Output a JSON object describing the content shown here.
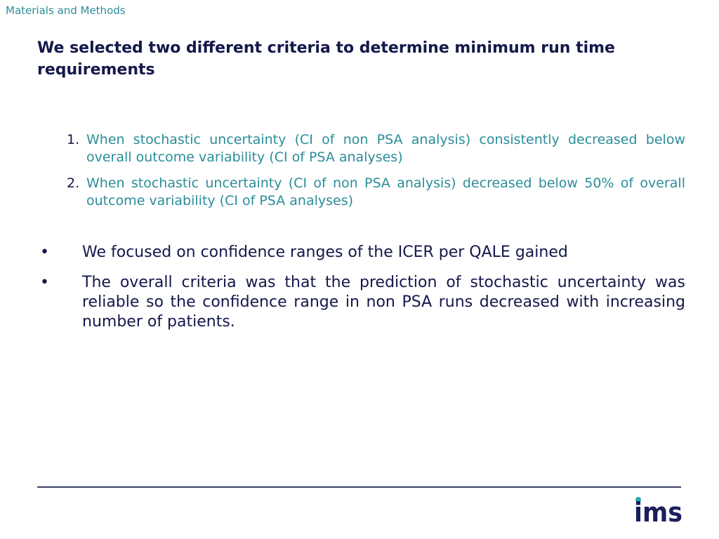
{
  "header": {
    "section_label": "Materials and Methods",
    "title": "We selected two different criteria to determine minimum run time requirements"
  },
  "criteria": [
    {
      "number": "1.",
      "text": "When stochastic uncertainty (CI of non PSA analysis) consistently decreased below overall outcome variability (CI of PSA analyses)"
    },
    {
      "number": "2.",
      "text": "When stochastic uncertainty (CI of non PSA analysis) decreased below 50% of overall outcome variability (CI of PSA analyses)"
    }
  ],
  "bullets": [
    {
      "marker": "•",
      "text": "We focused on confidence ranges of the ICER per QALE gained"
    },
    {
      "marker": "•",
      "text": "The overall criteria was that the prediction of stochastic uncertainty was reliable so the confidence range in non PSA runs decreased with increasing number of patients."
    }
  ],
  "footer": {
    "logo_text": "ims"
  },
  "colors": {
    "title": "#14184a",
    "accent": "#2a8d99",
    "rule": "#3a3f6a",
    "logo": "#1b1f5c",
    "logo_dot": "#2aa9b6"
  }
}
